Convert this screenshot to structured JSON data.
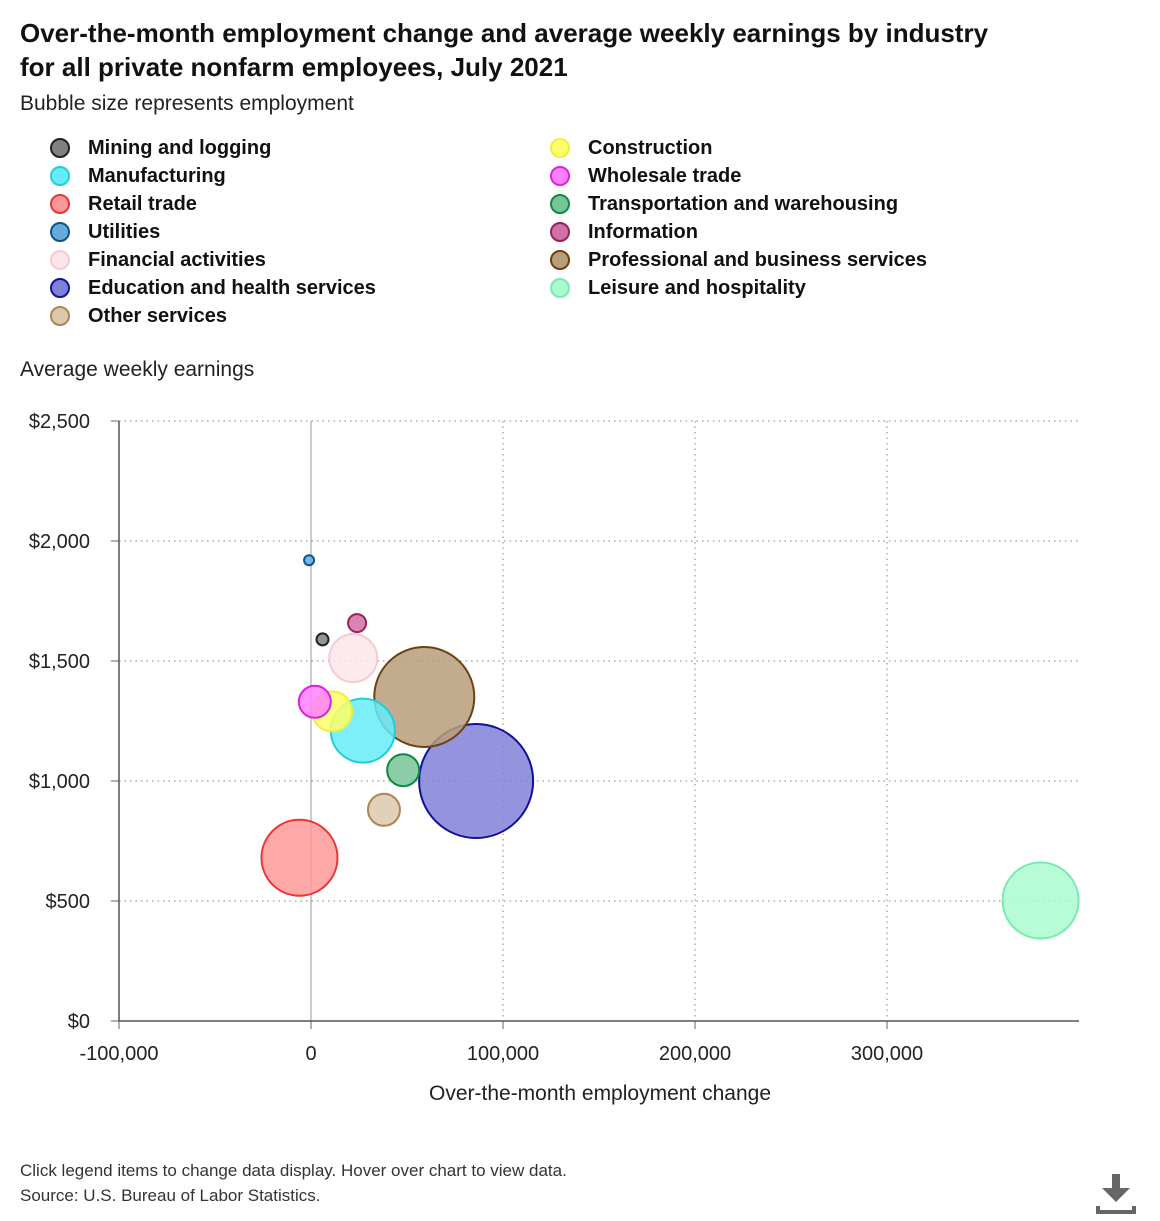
{
  "header": {
    "title": "Over-the-month employment change and average weekly earnings by industry for all private nonfarm employees, July 2021",
    "subtitle": "Bubble size represents employment"
  },
  "footer": {
    "note": "Click legend items to change data display. Hover over chart to view data.",
    "source": "Source: U.S. Bureau of Labor Statistics."
  },
  "icons": {
    "download": "download-icon"
  },
  "chart_data": {
    "type": "scatter",
    "subtype": "bubble",
    "title": "Over-the-month employment change and average weekly earnings by industry for all private nonfarm employees, July 2021",
    "subtitle": "Bubble size represents employment",
    "xlabel": "Over-the-month employment change",
    "ylabel": "Average weekly earnings",
    "xlim": [
      -100000,
      400000
    ],
    "ylim": [
      0,
      2500
    ],
    "x_ticks": [
      -100000,
      0,
      100000,
      200000,
      300000
    ],
    "x_tick_labels": [
      "-100,000",
      "0",
      "100,000",
      "200,000",
      "300,000"
    ],
    "y_ticks": [
      0,
      500,
      1000,
      1500,
      2000,
      2500
    ],
    "y_tick_labels": [
      "$0",
      "$500",
      "$1,000",
      "$1,500",
      "$2,000",
      "$2,500"
    ],
    "grid": true,
    "legend_position": "top",
    "series": [
      {
        "name": "Mining and logging",
        "x": 6000,
        "y": 1590,
        "relative_size": 6,
        "fill": "#808080",
        "stroke": "#222222"
      },
      {
        "name": "Construction",
        "x": 11000,
        "y": 1290,
        "relative_size": 20,
        "fill": "#ffff66",
        "stroke": "#eeee44"
      },
      {
        "name": "Manufacturing",
        "x": 27000,
        "y": 1210,
        "relative_size": 32,
        "fill": "#66ecf7",
        "stroke": "#22ccdd"
      },
      {
        "name": "Wholesale trade",
        "x": 2000,
        "y": 1330,
        "relative_size": 16,
        "fill": "#ff80ff",
        "stroke": "#dd22dd"
      },
      {
        "name": "Retail trade",
        "x": -6000,
        "y": 680,
        "relative_size": 38,
        "fill": "#ff9999",
        "stroke": "#ee3333"
      },
      {
        "name": "Transportation and warehousing",
        "x": 48000,
        "y": 1045,
        "relative_size": 16,
        "fill": "#77c497",
        "stroke": "#118844"
      },
      {
        "name": "Utilities",
        "x": -1000,
        "y": 1920,
        "relative_size": 5,
        "fill": "#66aadd",
        "stroke": "#115588"
      },
      {
        "name": "Information",
        "x": 24000,
        "y": 1658,
        "relative_size": 9,
        "fill": "#d070a8",
        "stroke": "#992255"
      },
      {
        "name": "Financial activities",
        "x": 22000,
        "y": 1512,
        "relative_size": 24,
        "fill": "#fde6ea",
        "stroke": "#f7c9d2"
      },
      {
        "name": "Professional and business services",
        "x": 59000,
        "y": 1350,
        "relative_size": 50,
        "fill": "#b89e7a",
        "stroke": "#6b4212"
      },
      {
        "name": "Education and health services",
        "x": 86000,
        "y": 1000,
        "relative_size": 57,
        "fill": "#8080d8",
        "stroke": "#111199"
      },
      {
        "name": "Leisure and hospitality",
        "x": 380000,
        "y": 502,
        "relative_size": 38,
        "fill": "#aafcd0",
        "stroke": "#77ebb0"
      },
      {
        "name": "Other services",
        "x": 38000,
        "y": 880,
        "relative_size": 16,
        "fill": "#dcc8ae",
        "stroke": "#aa8855"
      }
    ]
  }
}
